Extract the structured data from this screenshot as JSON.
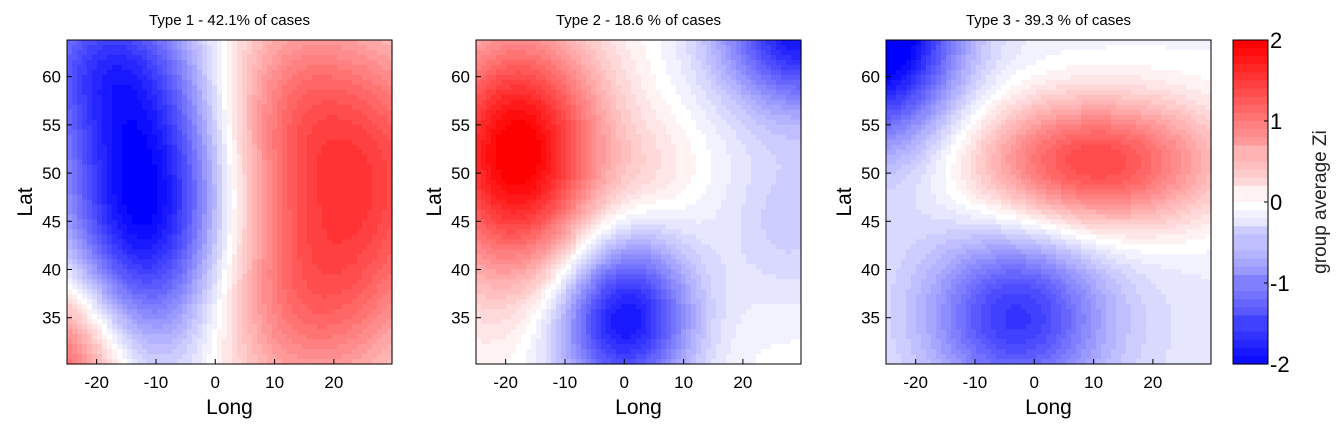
{
  "chart_data": [
    {
      "type": "heatmap",
      "title": "Type 1 - 42.1% of cases",
      "xlabel": "Long",
      "ylabel": "Lat",
      "xlim": [
        -25,
        29.8
      ],
      "ylim": [
        30.2,
        63.8
      ],
      "xticks": [
        -20,
        -10,
        0,
        10,
        20
      ],
      "yticks": [
        35,
        40,
        45,
        50,
        55,
        60
      ],
      "components": [
        {
          "lon": -12,
          "lat": 47,
          "amp": -2.1,
          "slon": 10,
          "slat": 11
        },
        {
          "lon": -20,
          "lat": 62,
          "amp": -1.0,
          "slon": 10,
          "slat": 6
        },
        {
          "lon": 26,
          "lat": 50,
          "amp": 1.3,
          "slon": 14,
          "slat": 10
        },
        {
          "lon": 12,
          "lat": 58,
          "amp": 0.6,
          "slon": 10,
          "slat": 8
        },
        {
          "lon": 15,
          "lat": 36,
          "amp": 0.9,
          "slon": 12,
          "slat": 8
        },
        {
          "lon": -26,
          "lat": 30,
          "amp": 1.4,
          "slon": 8,
          "slat": 7
        }
      ]
    },
    {
      "type": "heatmap",
      "title": "Type 2 - 18.6 % of cases",
      "xlabel": "Long",
      "ylabel": "Lat",
      "xlim": [
        -25,
        29.8
      ],
      "ylim": [
        30.2,
        63.8
      ],
      "xticks": [
        -20,
        -10,
        0,
        10,
        20
      ],
      "yticks": [
        35,
        40,
        45,
        50,
        55,
        60
      ],
      "components": [
        {
          "lon": -18,
          "lat": 52,
          "amp": 2.1,
          "slon": 10,
          "slat": 9
        },
        {
          "lon": 0,
          "lat": 35,
          "amp": -1.9,
          "slon": 8,
          "slat": 6
        },
        {
          "lon": 30,
          "lat": 65,
          "amp": -1.9,
          "slon": 10,
          "slat": 6
        },
        {
          "lon": 5,
          "lat": 50,
          "amp": 0.2,
          "slon": 6,
          "slat": 4
        },
        {
          "lon": 28,
          "lat": 45,
          "amp": -0.4,
          "slon": 8,
          "slat": 6
        }
      ]
    },
    {
      "type": "heatmap",
      "title": "Type 3 - 39.3 % of cases",
      "xlabel": "Long",
      "ylabel": "Lat",
      "xlim": [
        -25,
        29.8
      ],
      "ylim": [
        30.2,
        63.8
      ],
      "xticks": [
        -20,
        -10,
        0,
        10,
        20
      ],
      "yticks": [
        35,
        40,
        45,
        50,
        55,
        60
      ],
      "components": [
        {
          "lon": -26,
          "lat": 65,
          "amp": -2.3,
          "slon": 9,
          "slat": 8
        },
        {
          "lon": 10,
          "lat": 51,
          "amp": 1.7,
          "slon": 15,
          "slat": 5
        },
        {
          "lon": -3,
          "lat": 35,
          "amp": -1.3,
          "slon": 10,
          "slat": 6
        },
        {
          "lon": 0,
          "lat": 40,
          "amp": -0.3,
          "slon": 30,
          "slat": 20
        }
      ]
    }
  ],
  "colorbar": {
    "label": "group average Zi",
    "ticks": [
      "2",
      "1",
      "0",
      "-1",
      "-2"
    ],
    "range": [
      -2,
      2
    ],
    "colors": {
      "high": "#ff0000",
      "mid": "#ffffff",
      "low": "#0000ff"
    }
  }
}
